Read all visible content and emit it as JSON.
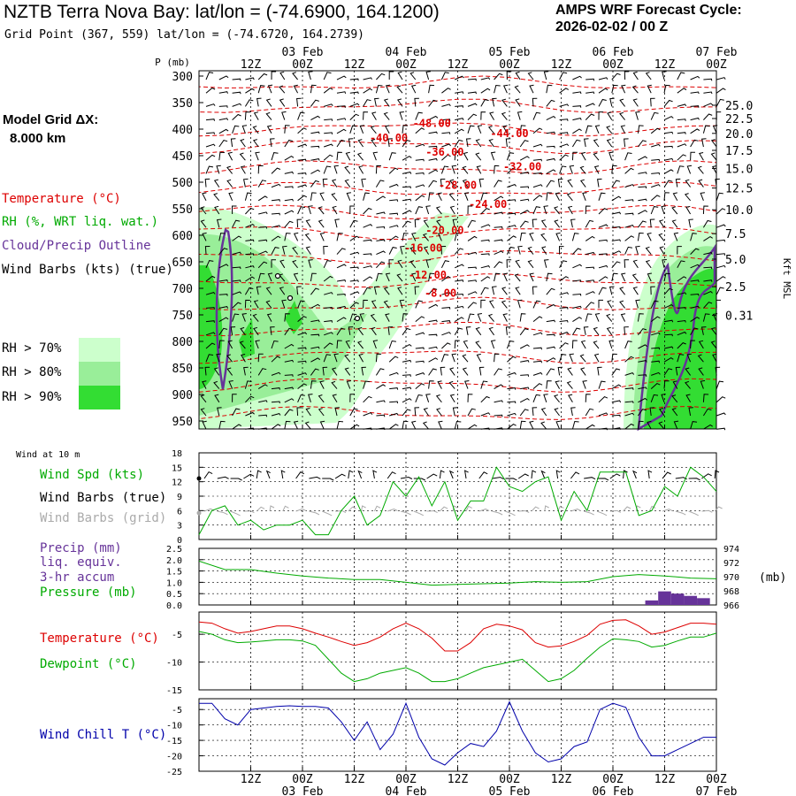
{
  "header": {
    "title": "NZTB Terra Nova Bay:  lat/lon = (-74.6900, 164.1200)",
    "grid_point": "Grid Point (367, 559) lat/lon = (-74.6720, 164.2739)",
    "cycle_line1": "AMPS WRF Forecast Cycle:",
    "cycle_line2": "2026-02-02 / 00  Z"
  },
  "model_grid": {
    "label": "Model Grid ΔX:",
    "value": "8.000 km"
  },
  "colors": {
    "temperature": "#dd0000",
    "rh": "#00aa00",
    "cloud": "#663399",
    "wind": "#000000",
    "grid_wind": "#aaaaaa",
    "windchill": "#0000aa",
    "precip": "#663399",
    "pressure": "#00aa00",
    "rh70": "#ccffcc",
    "rh80": "#99ee99",
    "rh90": "#33dd33"
  },
  "legend": {
    "temperature": "Temperature (°C)",
    "rh": "RH (%, WRT liq. wat.)",
    "cloud": "Cloud/Precip Outline",
    "wind": "Wind Barbs (kts) (true)",
    "rh70": "RH > 70%",
    "rh80": "RH > 80%",
    "rh90": "RH > 90%"
  },
  "time_axis": {
    "hours": [
      "12Z",
      "00Z",
      "12Z",
      "00Z",
      "12Z",
      "00Z",
      "12Z",
      "00Z",
      "12Z",
      "00Z"
    ],
    "dates": [
      "03 Feb",
      "04 Feb",
      "05 Feb",
      "06 Feb",
      "07 Feb"
    ]
  },
  "chart_data": [
    {
      "type": "contour",
      "name": "cross-section",
      "ylabel": "P (mb)",
      "y2label": "Kft MSL",
      "p_ticks": [
        "300",
        "350",
        "400",
        "450",
        "500",
        "550",
        "600",
        "650",
        "700",
        "750",
        "800",
        "850",
        "900",
        "950"
      ],
      "kft_ticks": [
        {
          "label": "25.0",
          "p": 355
        },
        {
          "label": "22.5",
          "p": 380
        },
        {
          "label": "20.0",
          "p": 408
        },
        {
          "label": "17.5",
          "p": 440
        },
        {
          "label": "15.0",
          "p": 474
        },
        {
          "label": "12.5",
          "p": 511
        },
        {
          "label": "10.0",
          "p": 552
        },
        {
          "label": "7.5",
          "p": 597
        },
        {
          "label": "5.0",
          "p": 645
        },
        {
          "label": "2.5",
          "p": 697
        },
        {
          "label": "0.31",
          "p": 751
        }
      ],
      "temp_labels": [
        {
          "text": "-48.00",
          "t": 54,
          "p": 389
        },
        {
          "text": "-44.00",
          "t": 72,
          "p": 408
        },
        {
          "text": "-40.00",
          "t": 44,
          "p": 417
        },
        {
          "text": "-36.00",
          "t": 57,
          "p": 443
        },
        {
          "text": "-32.00",
          "t": 75,
          "p": 471
        },
        {
          "text": "-28.00",
          "t": 60,
          "p": 506
        },
        {
          "text": "-24.00",
          "t": 67,
          "p": 542
        },
        {
          "text": "-20.00",
          "t": 57,
          "p": 591
        },
        {
          "text": "-16.00",
          "t": 52,
          "p": 624
        },
        {
          "text": "-12.00",
          "t": 53,
          "p": 675
        },
        {
          "text": "-8.00",
          "t": 56,
          "p": 709
        }
      ]
    },
    {
      "type": "line",
      "name": "wind",
      "title": "Wind at 10 m",
      "labels": {
        "spd": "Wind Spd (kts)",
        "barbs_true": "Wind Barbs (true)",
        "barbs_grid": "Wind Barbs (grid)"
      },
      "y_ticks": [
        "18",
        "15",
        "12",
        "9",
        "6",
        "3",
        "0"
      ],
      "ylim": [
        0,
        18
      ],
      "x": [
        0,
        3,
        6,
        9,
        12,
        15,
        18,
        21,
        24,
        27,
        30,
        33,
        36,
        39,
        42,
        45,
        48,
        51,
        54,
        57,
        60,
        63,
        66,
        69,
        72,
        75,
        78,
        81,
        84,
        87,
        90,
        93,
        96,
        99,
        102,
        105,
        108,
        111,
        114,
        117,
        120
      ],
      "series": [
        {
          "name": "Wind Spd",
          "values": [
            1,
            6,
            7,
            3,
            4,
            2,
            3,
            3,
            4,
            1,
            1,
            6,
            9,
            3,
            5,
            12,
            9,
            13,
            7,
            12,
            4,
            8,
            8,
            15,
            11,
            10,
            12,
            13,
            4,
            10,
            6,
            14,
            14,
            14,
            5,
            6,
            11,
            9,
            15,
            13,
            10
          ]
        }
      ]
    },
    {
      "type": "bar+line",
      "name": "precip-pressure",
      "labels": {
        "precip": "Precip (mm)",
        "liq": "liq. equiv.",
        "accum": "3-hr accum",
        "pressure": "Pressure (mb)"
      },
      "y_ticks": [
        "2.5",
        "2.0",
        "1.5",
        "1.0",
        "0.5",
        "0.0"
      ],
      "ylim": [
        0,
        2.5
      ],
      "y2_ticks": [
        "974",
        "972",
        "970",
        "968",
        "966"
      ],
      "y2lim": [
        966,
        974
      ],
      "y2label": "(mb)",
      "precip": [
        {
          "t": 105,
          "v": 0.2
        },
        {
          "t": 108,
          "v": 0.6
        },
        {
          "t": 111,
          "v": 0.5
        },
        {
          "t": 114,
          "v": 0.4
        },
        {
          "t": 117,
          "v": 0.3
        }
      ],
      "pressure": {
        "x": [
          0,
          6,
          12,
          18,
          24,
          30,
          36,
          42,
          48,
          54,
          60,
          66,
          72,
          78,
          84,
          90,
          96,
          102,
          108,
          114,
          120
        ],
        "values": [
          972.2,
          971.0,
          971.0,
          970.5,
          970.1,
          969.8,
          969.6,
          969.6,
          969.2,
          968.8,
          968.9,
          969.0,
          969.1,
          969.3,
          969.2,
          969.3,
          970.0,
          970.3,
          970.1,
          969.8,
          969.7
        ]
      }
    },
    {
      "type": "line",
      "name": "temperature",
      "labels": {
        "temp": "Temperature (°C)",
        "dew": "Dewpoint (°C)"
      },
      "y_ticks": [
        "-5",
        "-10",
        "-15"
      ],
      "ylim": [
        -15,
        -1
      ],
      "x": [
        0,
        3,
        6,
        9,
        12,
        15,
        18,
        21,
        24,
        27,
        30,
        33,
        36,
        39,
        42,
        45,
        48,
        51,
        54,
        57,
        60,
        63,
        66,
        69,
        72,
        75,
        78,
        81,
        84,
        87,
        90,
        93,
        96,
        99,
        102,
        105,
        108,
        111,
        114,
        117,
        120
      ],
      "series": [
        {
          "name": "Temperature",
          "values": [
            -2.8,
            -3,
            -4,
            -4.8,
            -4.5,
            -4,
            -3.5,
            -3.5,
            -4,
            -4.8,
            -5.5,
            -6.3,
            -7,
            -6.5,
            -5.5,
            -4,
            -3,
            -4,
            -5.7,
            -8,
            -8,
            -6.5,
            -4,
            -3.2,
            -3.5,
            -4.2,
            -6.5,
            -7.3,
            -7.1,
            -6.3,
            -5.2,
            -3.2,
            -2.5,
            -2.4,
            -3.5,
            -5,
            -4.6,
            -3.8,
            -3,
            -3,
            -3.2
          ],
          "color": "temperature"
        },
        {
          "name": "Dewpoint",
          "values": [
            -4.5,
            -5,
            -6,
            -6.5,
            -6.4,
            -6.2,
            -6,
            -6,
            -6.2,
            -7,
            -9.5,
            -12,
            -13.5,
            -13,
            -12,
            -11.5,
            -11,
            -12,
            -13.5,
            -13.5,
            -13,
            -12,
            -11,
            -10.5,
            -10,
            -9.5,
            -11.5,
            -13.5,
            -13,
            -11.5,
            -9.3,
            -7.3,
            -5.8,
            -6,
            -6.3,
            -7.3,
            -7,
            -6.2,
            -5.5,
            -5.5,
            -4.8
          ],
          "color": "rh"
        }
      ]
    },
    {
      "type": "line",
      "name": "windchill",
      "labels": {
        "wc": "Wind Chill T (°C)"
      },
      "y_ticks": [
        "-5",
        "-10",
        "-15",
        "-20",
        "-25"
      ],
      "ylim": [
        -25,
        -1.5
      ],
      "x": [
        0,
        3,
        6,
        9,
        12,
        15,
        18,
        21,
        24,
        27,
        30,
        33,
        36,
        39,
        42,
        45,
        48,
        51,
        54,
        57,
        60,
        63,
        66,
        69,
        72,
        75,
        78,
        81,
        84,
        87,
        90,
        93,
        96,
        99,
        102,
        105,
        108,
        111,
        114,
        117,
        120
      ],
      "series": [
        {
          "name": "Wind Chill",
          "values": [
            -3,
            -3,
            -8,
            -10,
            -5,
            -4.5,
            -4,
            -3.8,
            -4,
            -4,
            -4.5,
            -9,
            -15,
            -9,
            -18,
            -13,
            -3,
            -14,
            -21,
            -23,
            -19,
            -16,
            -17,
            -12,
            -2.5,
            -12,
            -19,
            -22,
            -21,
            -17,
            -15.5,
            -5,
            -3,
            -4.3,
            -14,
            -20,
            -20,
            -18,
            -16,
            -14,
            -14
          ]
        }
      ]
    }
  ]
}
